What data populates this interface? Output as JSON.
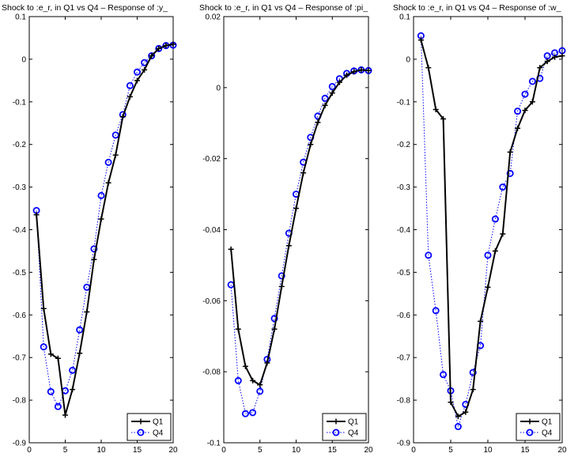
{
  "chart_data": [
    {
      "type": "line",
      "title": "Shock to :e_r, in Q1  vs Q4 – Response of :y_",
      "xlabel": "",
      "ylabel": "",
      "xlim": [
        0,
        20
      ],
      "ylim": [
        -0.9,
        0.1
      ],
      "xticks": [
        "0",
        "5",
        "10",
        "15",
        "20"
      ],
      "yticks": [
        "0.1",
        "0",
        "-0.1",
        "-0.2",
        "-0.3",
        "-0.4",
        "-0.5",
        "-0.6",
        "-0.7",
        "-0.8",
        "-0.9"
      ],
      "ytick_values": [
        0.1,
        0,
        -0.1,
        -0.2,
        -0.3,
        -0.4,
        -0.5,
        -0.6,
        -0.7,
        -0.8,
        -0.9
      ],
      "xtick_values": [
        0,
        5,
        10,
        15,
        20
      ],
      "legend_position": "bottom-right",
      "x": [
        1,
        2,
        3,
        4,
        5,
        6,
        7,
        8,
        9,
        10,
        11,
        12,
        13,
        14,
        15,
        16,
        17,
        18,
        19,
        20
      ],
      "series": [
        {
          "name": "Q1",
          "style": "solid-plus",
          "color": "#000000",
          "values": [
            -0.365,
            -0.585,
            -0.692,
            -0.702,
            -0.835,
            -0.775,
            -0.69,
            -0.593,
            -0.47,
            -0.375,
            -0.29,
            -0.225,
            -0.135,
            -0.088,
            -0.05,
            -0.025,
            0.008,
            0.025,
            0.032,
            0.035
          ]
        },
        {
          "name": "Q4",
          "style": "dotted-circle",
          "color": "#0000ff",
          "values": [
            -0.355,
            -0.675,
            -0.78,
            -0.815,
            -0.778,
            -0.73,
            -0.635,
            -0.535,
            -0.445,
            -0.32,
            -0.242,
            -0.178,
            -0.13,
            -0.062,
            -0.03,
            -0.008,
            0.008,
            0.025,
            0.032,
            0.033
          ]
        }
      ]
    },
    {
      "type": "line",
      "title": "Shock to :e_r, in Q1  vs Q4 – Response of :pi_",
      "xlabel": "",
      "ylabel": "",
      "xlim": [
        0,
        20
      ],
      "ylim": [
        -0.1,
        0.02
      ],
      "xticks": [
        "0",
        "5",
        "10",
        "15",
        "20"
      ],
      "yticks": [
        "0.02",
        "0",
        "-0.02",
        "-0.04",
        "-0.06",
        "-0.08",
        "-0.1"
      ],
      "ytick_values": [
        0.02,
        0,
        -0.02,
        -0.04,
        -0.06,
        -0.08,
        -0.1
      ],
      "xtick_values": [
        0,
        5,
        10,
        15,
        20
      ],
      "legend_position": "bottom-right",
      "x": [
        1,
        2,
        3,
        4,
        5,
        6,
        7,
        8,
        9,
        10,
        11,
        12,
        13,
        14,
        15,
        16,
        17,
        18,
        19,
        20
      ],
      "series": [
        {
          "name": "Q1",
          "style": "solid-plus",
          "color": "#000000",
          "values": [
            -0.0455,
            -0.068,
            -0.0785,
            -0.0825,
            -0.0837,
            -0.0775,
            -0.068,
            -0.056,
            -0.0445,
            -0.034,
            -0.024,
            -0.016,
            -0.0098,
            -0.005,
            -0.0015,
            0.0015,
            0.0035,
            0.0045,
            0.005,
            0.0048
          ]
        },
        {
          "name": "Q4",
          "style": "dotted-circle",
          "color": "#0000ff",
          "values": [
            -0.0555,
            -0.0825,
            -0.0918,
            -0.0915,
            -0.0855,
            -0.0765,
            -0.065,
            -0.053,
            -0.041,
            -0.03,
            -0.021,
            -0.014,
            -0.008,
            -0.003,
            0.0003,
            0.0025,
            0.004,
            0.0047,
            0.005,
            0.0048
          ]
        }
      ]
    },
    {
      "type": "line",
      "title": "Shock to :e_r, in Q1  vs Q4 – Response of :w_",
      "xlabel": "",
      "ylabel": "",
      "xlim": [
        0,
        20
      ],
      "ylim": [
        -0.9,
        0.1
      ],
      "xticks": [
        "0",
        "5",
        "10",
        "15",
        "20"
      ],
      "yticks": [
        "0.1",
        "0",
        "-0.1",
        "-0.2",
        "-0.3",
        "-0.4",
        "-0.5",
        "-0.6",
        "-0.7",
        "-0.8",
        "-0.9"
      ],
      "ytick_values": [
        0.1,
        0,
        -0.1,
        -0.2,
        -0.3,
        -0.4,
        -0.5,
        -0.6,
        -0.7,
        -0.8,
        -0.9
      ],
      "xtick_values": [
        0,
        5,
        10,
        15,
        20
      ],
      "legend_position": "bottom-right",
      "x": [
        1,
        2,
        3,
        4,
        5,
        6,
        7,
        8,
        9,
        10,
        11,
        12,
        13,
        14,
        15,
        16,
        17,
        18,
        19,
        20
      ],
      "series": [
        {
          "name": "Q1",
          "style": "solid-plus",
          "color": "#000000",
          "values": [
            0.045,
            -0.02,
            -0.118,
            -0.14,
            -0.805,
            -0.838,
            -0.828,
            -0.775,
            -0.615,
            -0.535,
            -0.45,
            -0.41,
            -0.218,
            -0.162,
            -0.12,
            -0.1,
            -0.02,
            -0.005,
            0.005,
            0.008
          ]
        },
        {
          "name": "Q4",
          "style": "dotted-circle",
          "color": "#0000ff",
          "values": [
            0.055,
            -0.46,
            -0.59,
            -0.74,
            -0.778,
            -0.862,
            -0.81,
            -0.735,
            -0.672,
            -0.46,
            -0.375,
            -0.3,
            -0.268,
            -0.122,
            -0.082,
            -0.052,
            -0.045,
            0.008,
            0.015,
            0.02
          ]
        }
      ]
    }
  ]
}
